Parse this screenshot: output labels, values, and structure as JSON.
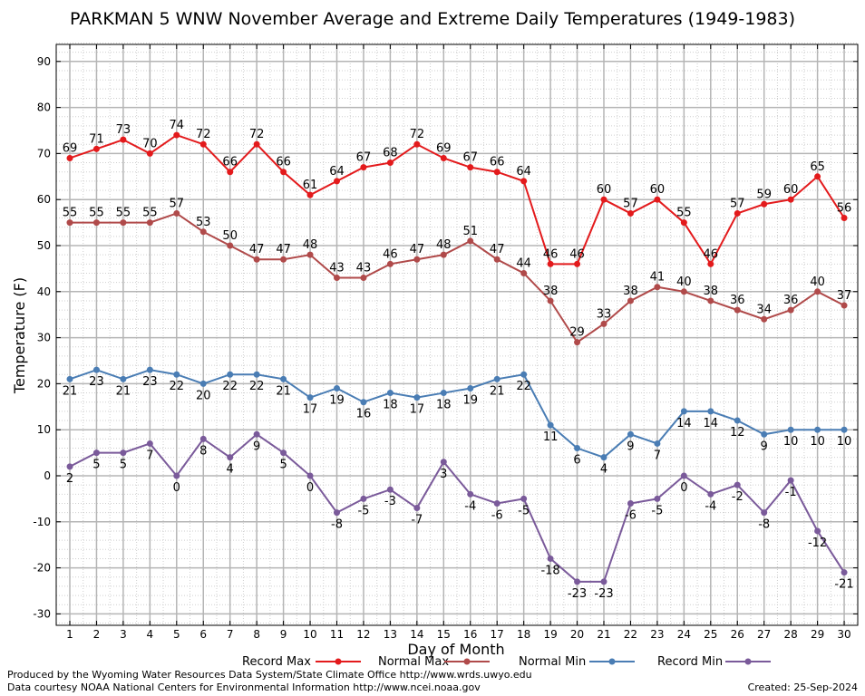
{
  "chart_data": {
    "type": "line",
    "title": "PARKMAN 5 WNW November Average and Extreme Daily Temperatures (1949-1983)",
    "xlabel": "Day of Month",
    "ylabel": "Temperature (F)",
    "x": [
      1,
      2,
      3,
      4,
      5,
      6,
      7,
      8,
      9,
      10,
      11,
      12,
      13,
      14,
      15,
      16,
      17,
      18,
      19,
      20,
      21,
      22,
      23,
      24,
      25,
      26,
      27,
      28,
      29,
      30
    ],
    "xlim": [
      0.5,
      30.5
    ],
    "ylim": [
      -33,
      95
    ],
    "yticks": [
      -30,
      -20,
      -10,
      0,
      10,
      20,
      30,
      40,
      50,
      60,
      70,
      80,
      90
    ],
    "grid": true,
    "legend_position": "bottom",
    "series": [
      {
        "name": "Record Max",
        "color": "#e31a1c",
        "label_position": "above",
        "values": [
          69,
          71,
          73,
          70,
          74,
          72,
          66,
          72,
          66,
          61,
          64,
          67,
          68,
          72,
          69,
          67,
          66,
          64,
          46,
          46,
          60,
          57,
          60,
          55,
          46,
          57,
          59,
          60,
          65,
          56
        ]
      },
      {
        "name": "Normal Max",
        "color": "#b04a4a",
        "label_position": "above",
        "values": [
          55,
          55,
          55,
          55,
          57,
          53,
          50,
          47,
          47,
          48,
          43,
          43,
          46,
          47,
          48,
          51,
          47,
          44,
          38,
          29,
          33,
          38,
          41,
          40,
          38,
          36,
          34,
          36,
          40,
          37
        ]
      },
      {
        "name": "Normal Min",
        "color": "#4a7db4",
        "label_position": "below",
        "values": [
          21,
          23,
          21,
          23,
          22,
          20,
          22,
          22,
          21,
          17,
          19,
          16,
          18,
          17,
          18,
          19,
          21,
          22,
          11,
          6,
          4,
          9,
          7,
          14,
          14,
          12,
          9,
          10,
          10,
          10
        ]
      },
      {
        "name": "Record Min",
        "color": "#7a5a9a",
        "label_position": "below",
        "values": [
          2,
          5,
          5,
          7,
          0,
          8,
          4,
          9,
          5,
          0,
          -8,
          -5,
          -3,
          -7,
          3,
          -4,
          -6,
          -5,
          -18,
          -23,
          -23,
          -6,
          -5,
          0,
          -4,
          -2,
          -8,
          -1,
          -12,
          -21
        ]
      }
    ]
  },
  "footer": {
    "left_line1": "Produced by the Wyoming Water Resources Data System/State Climate Office http://www.wrds.uwyo.edu",
    "left_line2": "Data courtesy NOAA National Centers for Environmental Information http://www.ncei.noaa.gov",
    "created": "Created:  25-Sep-2024"
  }
}
